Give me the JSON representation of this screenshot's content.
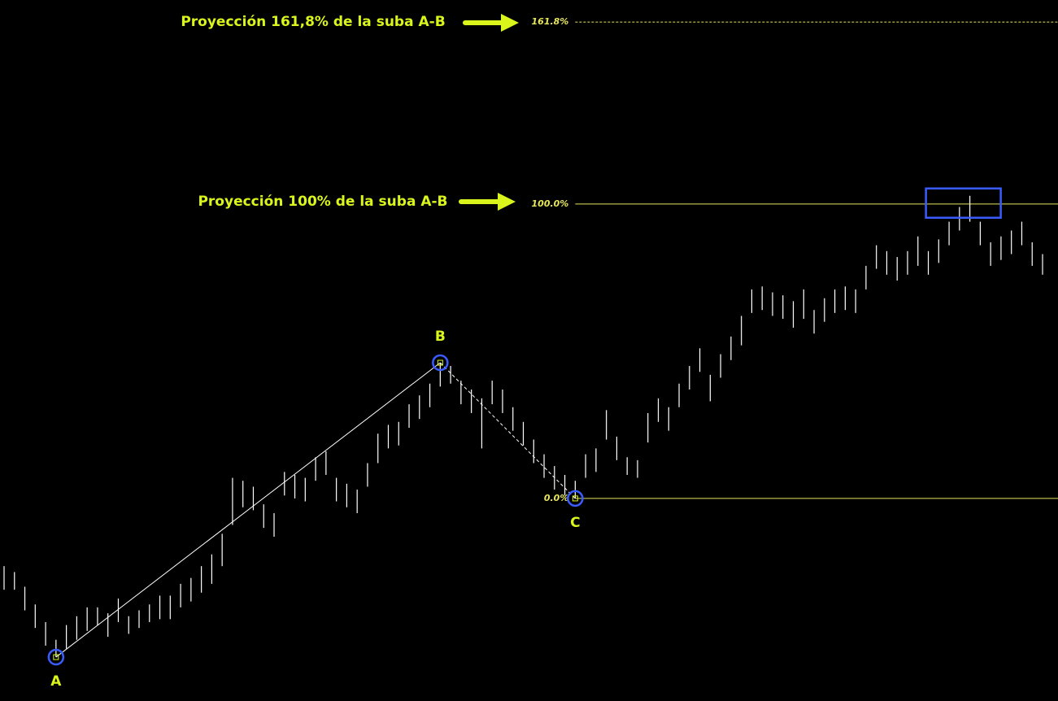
{
  "chart_data": {
    "type": "ohlc",
    "color": "#ffffff",
    "high": [
      -23,
      -25,
      -30,
      -36,
      -42,
      -48,
      -43,
      -40,
      -37,
      -37,
      -39,
      -34,
      -40,
      -38,
      -36,
      -33,
      -33,
      -29,
      -27,
      -23,
      -19,
      -12,
      7,
      6,
      4,
      -2,
      -5,
      9,
      8,
      7,
      14,
      16,
      7,
      5,
      3,
      12,
      22,
      25,
      26,
      32,
      35,
      39,
      46.1,
      45,
      40,
      37,
      34,
      40,
      37,
      31,
      26,
      20,
      15,
      11,
      8,
      6,
      15,
      17,
      30,
      21,
      14,
      13,
      29,
      34,
      31,
      39,
      45,
      51,
      42,
      49,
      55,
      62,
      71,
      72,
      70,
      69,
      67,
      71,
      64,
      68,
      71,
      72,
      71,
      79,
      86,
      84,
      82,
      84,
      89,
      84,
      88,
      94,
      99,
      102.8,
      94,
      87,
      89,
      91,
      94,
      87,
      83
    ],
    "low": [
      -31,
      -31,
      -38,
      -44,
      -50,
      -53.9,
      -51,
      -48,
      -45,
      -43,
      -47,
      -42,
      -46,
      -44,
      -42,
      -41,
      -41,
      -37,
      -35,
      -32,
      -29,
      -23,
      -9,
      -3,
      -4,
      -10,
      -13,
      1,
      0,
      -1,
      6,
      8,
      -1,
      -3,
      -5,
      4,
      12,
      17,
      18,
      24,
      27,
      31,
      38,
      39,
      32,
      29,
      17,
      32,
      29,
      23,
      18,
      12,
      7,
      3,
      1,
      0,
      7,
      9,
      20,
      13,
      8,
      7,
      19,
      26,
      23,
      31,
      37,
      43,
      33,
      41,
      47,
      52,
      63,
      64,
      62,
      61,
      58,
      61,
      56,
      60,
      63,
      64,
      63,
      71,
      78,
      76,
      74,
      76,
      79,
      76,
      80,
      86,
      91,
      94,
      86,
      79,
      81,
      83,
      86,
      79,
      76
    ],
    "xlim": [
      0,
      100
    ],
    "ylim": [
      -68.8,
      169.3
    ],
    "levels": [
      {
        "value": 0,
        "label": "0.0%"
      },
      {
        "value": 100,
        "label": "100.0%"
      },
      {
        "value": 161.8,
        "label": "161.8%"
      }
    ],
    "level_color": "#e6e65c",
    "points": [
      {
        "label": "A",
        "x": 5,
        "value": -53.9
      },
      {
        "label": "B",
        "x": 42,
        "value": 46.1
      },
      {
        "label": "C",
        "x": 55,
        "value": 0
      }
    ],
    "annotations": [
      "Proyección 161,8% de la suba A-B",
      "Proyección 100% de la suba A-B"
    ]
  }
}
